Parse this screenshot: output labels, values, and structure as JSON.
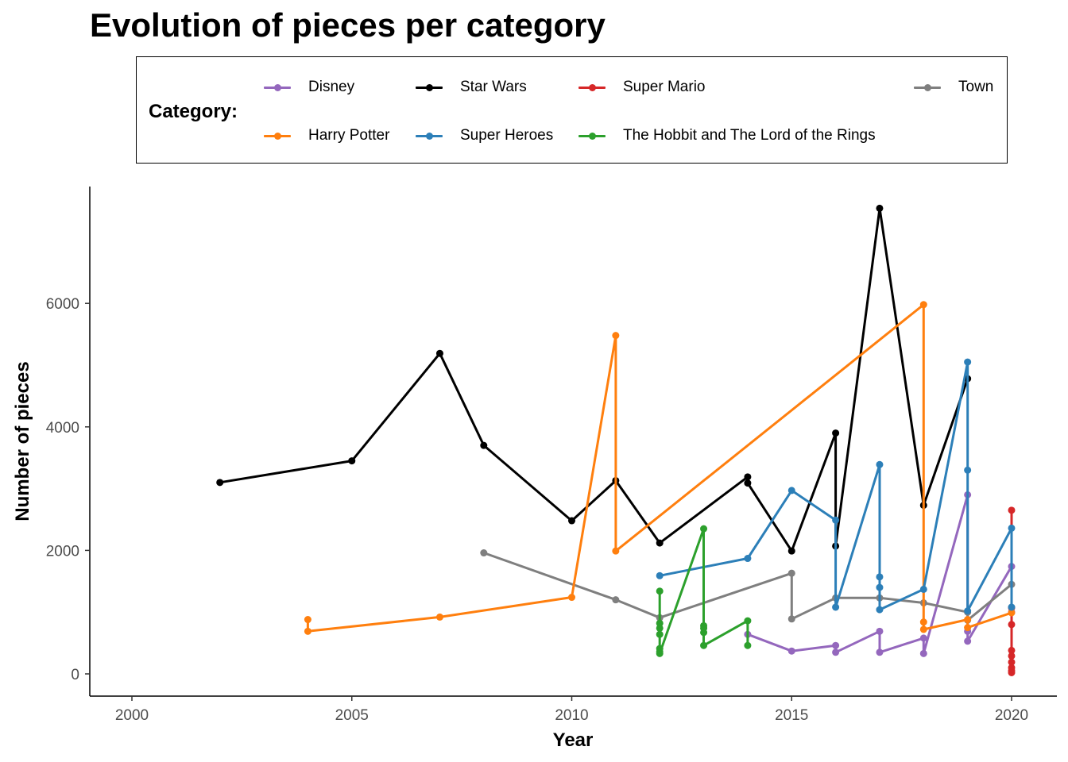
{
  "chart_data": {
    "type": "line",
    "title": "Evolution of pieces per category",
    "xlabel": "Year",
    "ylabel": "Number of pieces",
    "xlim": [
      2000,
      2020
    ],
    "ylim": [
      0,
      7500
    ],
    "xticks": [
      2000,
      2005,
      2010,
      2015,
      2020
    ],
    "yticks": [
      0,
      2000,
      4000,
      6000
    ],
    "grid": false,
    "legend": {
      "title": "Category:",
      "placement": "top",
      "entries": [
        "Disney",
        "Star Wars",
        "Super Mario",
        "Town",
        "Harry Potter",
        "Super Heroes",
        "The Hobbit and The Lord of the Rings"
      ]
    },
    "series": [
      {
        "name": "Disney",
        "color": "#9467bd",
        "points": [
          [
            2014,
            640
          ],
          [
            2015,
            370
          ],
          [
            2016,
            460
          ],
          [
            2016,
            350
          ],
          [
            2017,
            690
          ],
          [
            2017,
            350
          ],
          [
            2018,
            580
          ],
          [
            2018,
            330
          ],
          [
            2019,
            2900
          ],
          [
            2019,
            690
          ],
          [
            2019,
            530
          ],
          [
            2020,
            1740
          ],
          [
            2020,
            1000
          ]
        ]
      },
      {
        "name": "Star Wars",
        "color": "#000000",
        "points": [
          [
            2002,
            3100
          ],
          [
            2005,
            3450
          ],
          [
            2007,
            5190
          ],
          [
            2008,
            3700
          ],
          [
            2010,
            2480
          ],
          [
            2011,
            3130
          ],
          [
            2012,
            2120
          ],
          [
            2014,
            3190
          ],
          [
            2014,
            3090
          ],
          [
            2015,
            1990
          ],
          [
            2016,
            3900
          ],
          [
            2016,
            2070
          ],
          [
            2017,
            7540
          ],
          [
            2018,
            2730
          ],
          [
            2019,
            4780
          ]
        ]
      },
      {
        "name": "Super Mario",
        "color": "#d62728",
        "points": [
          [
            2020,
            2650
          ],
          [
            2020,
            1070
          ],
          [
            2020,
            800
          ],
          [
            2020,
            380
          ],
          [
            2020,
            290
          ],
          [
            2020,
            190
          ],
          [
            2020,
            100
          ],
          [
            2020,
            50
          ],
          [
            2020,
            20
          ]
        ]
      },
      {
        "name": "Town",
        "color": "#7f7f7f",
        "points": [
          [
            2008,
            1960
          ],
          [
            2011,
            1200
          ],
          [
            2012,
            910
          ],
          [
            2015,
            1630
          ],
          [
            2015,
            890
          ],
          [
            2016,
            1230
          ],
          [
            2017,
            1230
          ],
          [
            2018,
            1150
          ],
          [
            2019,
            1000
          ],
          [
            2019,
            870
          ],
          [
            2020,
            1450
          ]
        ]
      },
      {
        "name": "Harry Potter",
        "color": "#ff7f0e",
        "points": [
          [
            2004,
            880
          ],
          [
            2004,
            690
          ],
          [
            2007,
            920
          ],
          [
            2010,
            1240
          ],
          [
            2011,
            5480
          ],
          [
            2011,
            1990
          ],
          [
            2018,
            5980
          ],
          [
            2018,
            840
          ],
          [
            2018,
            720
          ],
          [
            2019,
            880
          ],
          [
            2019,
            750
          ],
          [
            2020,
            990
          ]
        ]
      },
      {
        "name": "Super Heroes",
        "color": "#2c7fb8",
        "points": [
          [
            2012,
            1590
          ],
          [
            2014,
            1870
          ],
          [
            2015,
            2970
          ],
          [
            2016,
            2490
          ],
          [
            2016,
            1080
          ],
          [
            2017,
            3390
          ],
          [
            2017,
            1570
          ],
          [
            2017,
            1400
          ],
          [
            2017,
            1040
          ],
          [
            2018,
            1370
          ],
          [
            2019,
            5050
          ],
          [
            2019,
            3300
          ],
          [
            2019,
            1020
          ],
          [
            2020,
            2360
          ],
          [
            2020,
            1080
          ]
        ]
      },
      {
        "name": "The Hobbit and The Lord of the Rings",
        "color": "#2ca02c",
        "points": [
          [
            2012,
            1340
          ],
          [
            2012,
            820
          ],
          [
            2012,
            740
          ],
          [
            2012,
            640
          ],
          [
            2012,
            410
          ],
          [
            2012,
            360
          ],
          [
            2012,
            330
          ],
          [
            2013,
            2350
          ],
          [
            2013,
            780
          ],
          [
            2013,
            740
          ],
          [
            2013,
            670
          ],
          [
            2013,
            460
          ],
          [
            2014,
            860
          ],
          [
            2014,
            460
          ]
        ]
      }
    ]
  }
}
